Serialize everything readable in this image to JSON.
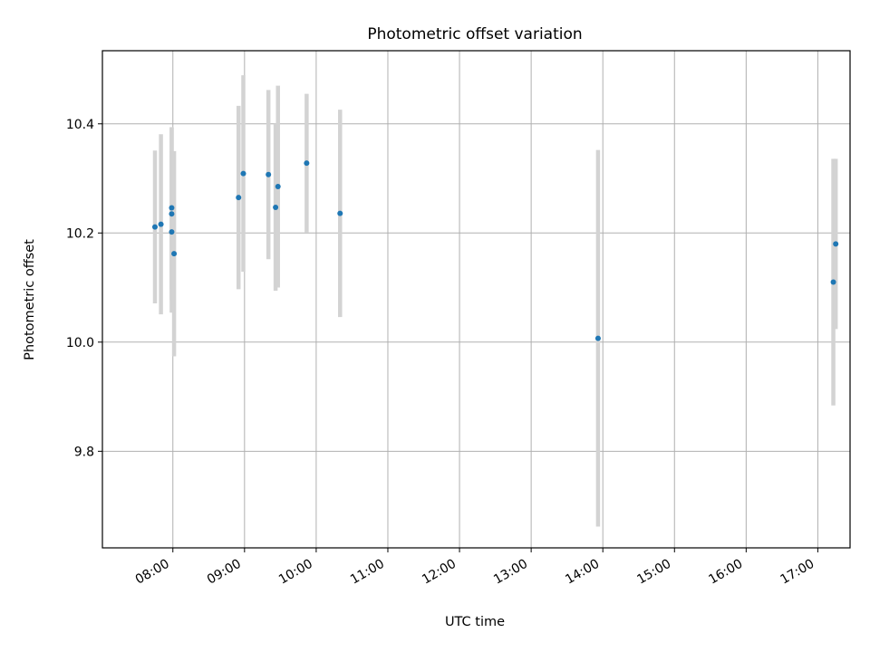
{
  "chart_data": {
    "type": "scatter",
    "title": "Photometric offset variation",
    "xlabel": "UTC time",
    "ylabel": "Photometric offset",
    "x_tick_labels": [
      "08:00",
      "09:00",
      "10:00",
      "11:00",
      "12:00",
      "13:00",
      "14:00",
      "15:00",
      "16:00",
      "17:00"
    ],
    "y_tick_labels": [
      "9.8",
      "10.0",
      "10.2",
      "10.4"
    ],
    "y_ticks": [
      9.8,
      10.0,
      10.2,
      10.4
    ],
    "xlim": [
      "07:01",
      "17:27"
    ],
    "ylim": [
      9.623,
      10.534
    ],
    "grid": true,
    "point_color": "#1f77b4",
    "errorbar_color": "#d3d3d3",
    "points": [
      {
        "x": "07:45",
        "y": 10.211,
        "err": 0.14
      },
      {
        "x": "07:50",
        "y": 10.216,
        "err": 0.165
      },
      {
        "x": "07:59",
        "y": 10.246,
        "err": 0.148
      },
      {
        "x": "07:59",
        "y": 10.235,
        "err": 0.158
      },
      {
        "x": "07:59",
        "y": 10.202,
        "err": 0.148
      },
      {
        "x": "08:01",
        "y": 10.162,
        "err": 0.188
      },
      {
        "x": "08:55",
        "y": 10.265,
        "err": 0.168
      },
      {
        "x": "08:59",
        "y": 10.309,
        "err": 0.18
      },
      {
        "x": "09:20",
        "y": 10.307,
        "err": 0.155
      },
      {
        "x": "09:26",
        "y": 10.247,
        "err": 0.153
      },
      {
        "x": "09:28",
        "y": 10.285,
        "err": 0.185
      },
      {
        "x": "09:52",
        "y": 10.328,
        "err": 0.127
      },
      {
        "x": "10:20",
        "y": 10.236,
        "err": 0.19
      },
      {
        "x": "13:56",
        "y": 10.007,
        "err": 0.345
      },
      {
        "x": "17:13",
        "y": 10.11,
        "err": 0.226
      },
      {
        "x": "17:15",
        "y": 10.18,
        "err": 0.156
      }
    ]
  }
}
